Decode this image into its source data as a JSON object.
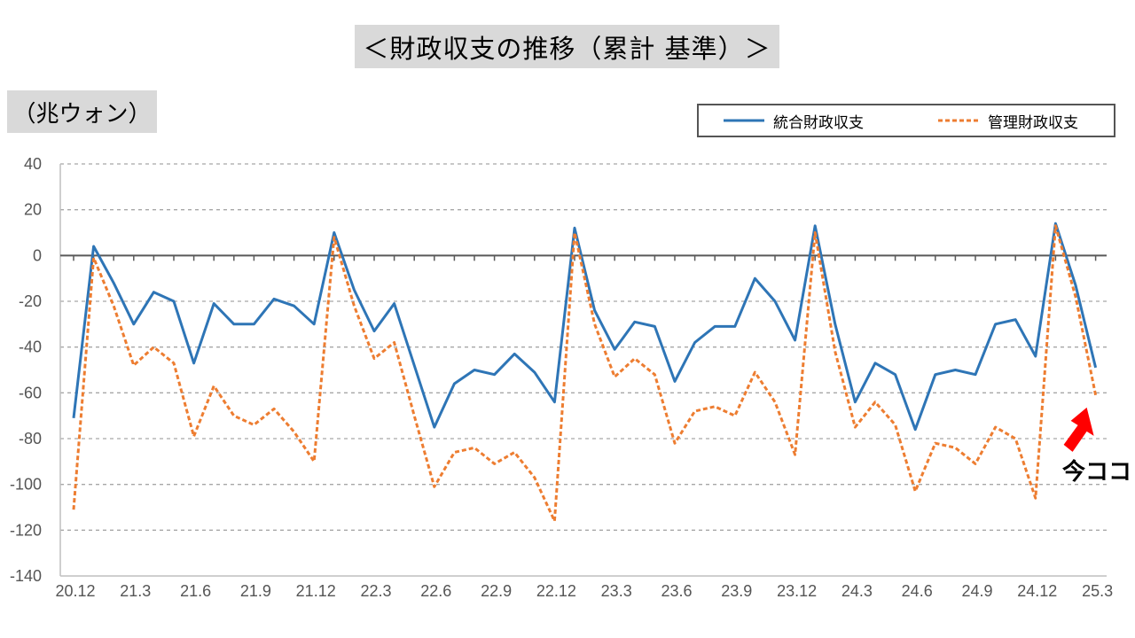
{
  "title": "＜財政収支の推移（累計 基準）＞",
  "unit": "（兆ウォン）",
  "annotation": "今ココ",
  "colors": {
    "consolidated": "#2e75b6",
    "managed": "#ed7d31",
    "arrow": "#ff0000",
    "grid": "#a6a6a6",
    "axis": "#595959"
  },
  "chart_data": {
    "type": "line",
    "title": "＜財政収支の推移（累計 基準）＞",
    "ylabel": "（兆ウォン）",
    "xlabel": "",
    "ylim": [
      -140,
      40
    ],
    "yticks": [
      40,
      20,
      0,
      -20,
      -40,
      -60,
      -80,
      -100,
      -120,
      -140
    ],
    "xtick_labels": [
      "20.12",
      "21.3",
      "21.6",
      "21.9",
      "21.12",
      "22.3",
      "22.6",
      "22.9",
      "22.12",
      "23.3",
      "23.6",
      "23.9",
      "23.12",
      "24.3",
      "24.6",
      "24.9",
      "24.12",
      "25.3"
    ],
    "grid": true,
    "legend_position": "top-right",
    "x": [
      "20.12",
      "21.1",
      "21.2",
      "21.3",
      "21.4",
      "21.5",
      "21.6",
      "21.7",
      "21.8",
      "21.9",
      "21.10",
      "21.11",
      "21.12",
      "22.1",
      "22.2",
      "22.3",
      "22.4",
      "22.5",
      "22.6",
      "22.7",
      "22.8",
      "22.9",
      "22.10",
      "22.11",
      "22.12",
      "23.1",
      "23.2",
      "23.3",
      "23.4",
      "23.5",
      "23.6",
      "23.7",
      "23.8",
      "23.9",
      "23.10",
      "23.11",
      "23.12",
      "24.1",
      "24.2",
      "24.3",
      "24.4",
      "24.5",
      "24.6",
      "24.7",
      "24.8",
      "24.9",
      "24.10",
      "24.11",
      "24.12",
      "25.1",
      "25.2",
      "25.3"
    ],
    "series": [
      {
        "name": "統合財政収支",
        "values": [
          -71,
          4,
          -12,
          -30,
          -16,
          -20,
          -47,
          -21,
          -30,
          -30,
          -19,
          -22,
          -30,
          10,
          -15,
          -33,
          -21,
          -48,
          -75,
          -56,
          -50,
          -52,
          -43,
          -51,
          -64,
          12,
          -24,
          -41,
          -29,
          -31,
          -55,
          -38,
          -31,
          -31,
          -10,
          -20,
          -37,
          13,
          -30,
          -64,
          -47,
          -52,
          -76,
          -52,
          -50,
          -52,
          -30,
          -28,
          -44,
          14,
          -13,
          -49
        ]
      },
      {
        "name": "管理財政収支",
        "values": [
          -111,
          -1,
          -22,
          -48,
          -40,
          -47,
          -79,
          -57,
          -70,
          -74,
          -67,
          -77,
          -90,
          8,
          -22,
          -45,
          -38,
          -70,
          -101,
          -86,
          -84,
          -91,
          -86,
          -97,
          -116,
          10,
          -30,
          -53,
          -45,
          -52,
          -82,
          -68,
          -66,
          -70,
          -51,
          -64,
          -87,
          10,
          -42,
          -75,
          -64,
          -74,
          -103,
          -82,
          -84,
          -91,
          -75,
          -80,
          -106,
          13,
          -18,
          -61
        ]
      }
    ]
  }
}
